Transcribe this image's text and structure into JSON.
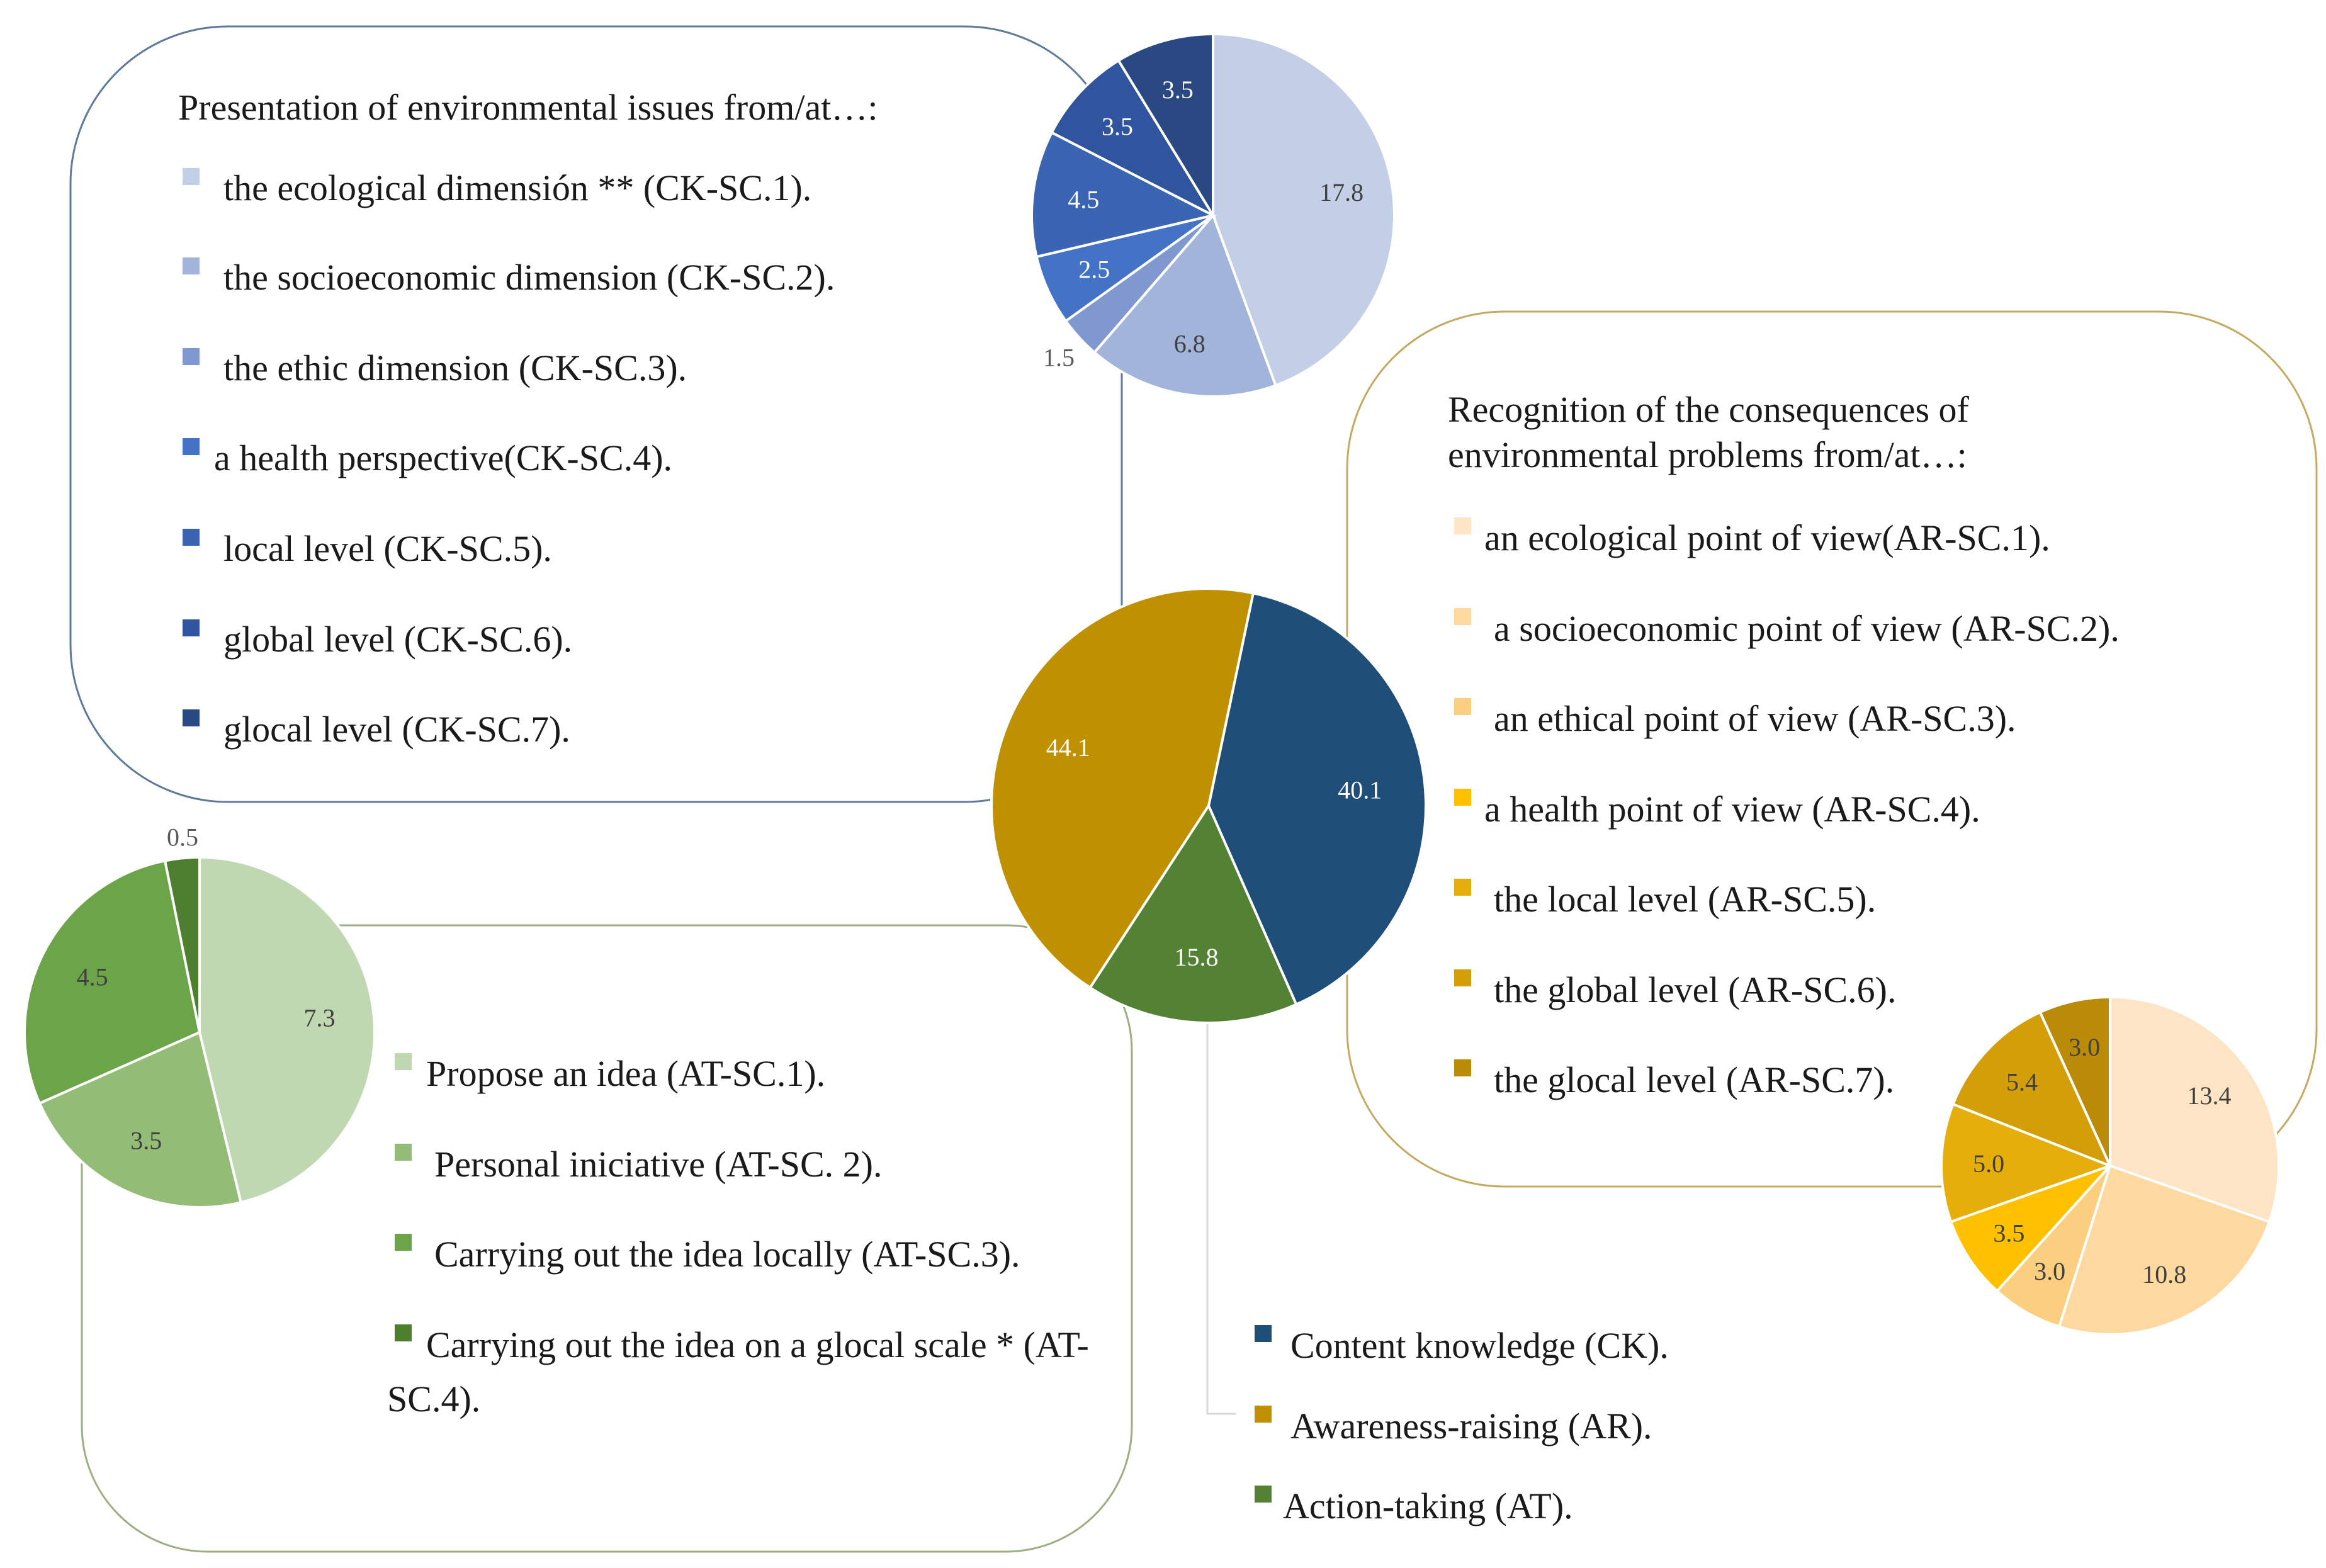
{
  "chart_data": [
    {
      "id": "main",
      "type": "pie",
      "title": "",
      "slices": [
        {
          "key": "CK",
          "label": "Content knowledge (CK).",
          "value": 40.1,
          "color": "#1F4E79",
          "label_color": "#ffffff"
        },
        {
          "key": "AR",
          "label": "Awareness-raising (AR).",
          "value": 44.1,
          "color": "#BF9000",
          "label_color": "#ffffff"
        },
        {
          "key": "AT",
          "label": "Action-taking (AT).",
          "value": 15.8,
          "color": "#548235",
          "label_color": "#ffffff"
        }
      ]
    },
    {
      "id": "ck",
      "type": "pie",
      "title": "Presentation of environmental issues from/at…:",
      "slices": [
        {
          "label": "the ecological dimensión ** (CK-SC.1).",
          "value": 17.8,
          "display": "17.8",
          "color": "#C2CFE6",
          "label_color": "#404040"
        },
        {
          "label": "the socioeconomic dimension (CK-SC.2).",
          "value": 6.8,
          "display": "6.8",
          "color": "#A3B4DB",
          "label_color": "#404040"
        },
        {
          "label": "the ethic dimension (CK-SC.3).",
          "value": 1.5,
          "display": "1.5",
          "color": "#8098D0",
          "label_color": "#404040"
        },
        {
          "label": "a health perspective(CK-SC.4).",
          "value": 2.5,
          "display": "2.5",
          "color": "#4472C4",
          "label_color": "#ffffff"
        },
        {
          "label": "local level (CK-SC.5).",
          "value": 4.5,
          "display": "4.5",
          "color": "#3B64B3",
          "label_color": "#ffffff"
        },
        {
          "label": "global level (CK-SC.6).",
          "value": 3.5,
          "display": "3.5",
          "color": "#30559E",
          "label_color": "#ffffff"
        },
        {
          "label": "glocal level (CK-SC.7).",
          "value": 3.5,
          "display": "3.5",
          "color": "#2A4882",
          "label_color": "#ffffff"
        }
      ]
    },
    {
      "id": "ar",
      "type": "pie",
      "title": "Recognition of the consequences of environmental problems from/at…:",
      "slices": [
        {
          "label": "an ecological point of view(AR-SC.1).",
          "value": 13.4,
          "display": "13.4",
          "color": "#FDE4C4",
          "label_color": "#404040"
        },
        {
          "label": "a socioeconomic point of view (AR-SC.2).",
          "value": 10.8,
          "display": "10.8",
          "color": "#FDD9A0",
          "label_color": "#404040"
        },
        {
          "label": "an ethical point of view (AR-SC.3).",
          "value": 3.0,
          "display": "3.0",
          "color": "#FCCE7F",
          "label_color": "#404040"
        },
        {
          "label": "a health point of view (AR-SC.4).",
          "value": 3.5,
          "display": "3.5",
          "color": "#FFC000",
          "label_color": "#404040"
        },
        {
          "label": "the local level (AR-SC.5).",
          "value": 5.0,
          "display": "5.0",
          "color": "#E6AE0A",
          "label_color": "#404040"
        },
        {
          "label": "the global level (AR-SC.6).",
          "value": 5.4,
          "display": "5.4",
          "color": "#D39E07",
          "label_color": "#404040"
        },
        {
          "label": "the glocal level (AR-SC.7).",
          "value": 3.0,
          "display": "3.0",
          "color": "#B98B07",
          "label_color": "#404040"
        }
      ]
    },
    {
      "id": "at",
      "type": "pie",
      "title": "",
      "slices": [
        {
          "label": "Propose an idea (AT-SC.1).",
          "value": 7.3,
          "display": "7.3",
          "color": "#C0D8B1",
          "label_color": "#404040"
        },
        {
          "label": "Personal iniciative (AT-SC. 2).",
          "value": 3.5,
          "display": "3.5",
          "color": "#93BD76",
          "label_color": "#404040"
        },
        {
          "label": "Carrying out the idea locally (AT-SC.3).",
          "value": 4.5,
          "display": "4.5",
          "color": "#6CA44A",
          "label_color": "#404040"
        },
        {
          "label": "Carrying out the idea on a glocal scale * (AT-SC.4).",
          "value": 0.5,
          "display": "0.5",
          "color": "#4D7F2E",
          "label_color": "#404040"
        }
      ]
    }
  ]
}
